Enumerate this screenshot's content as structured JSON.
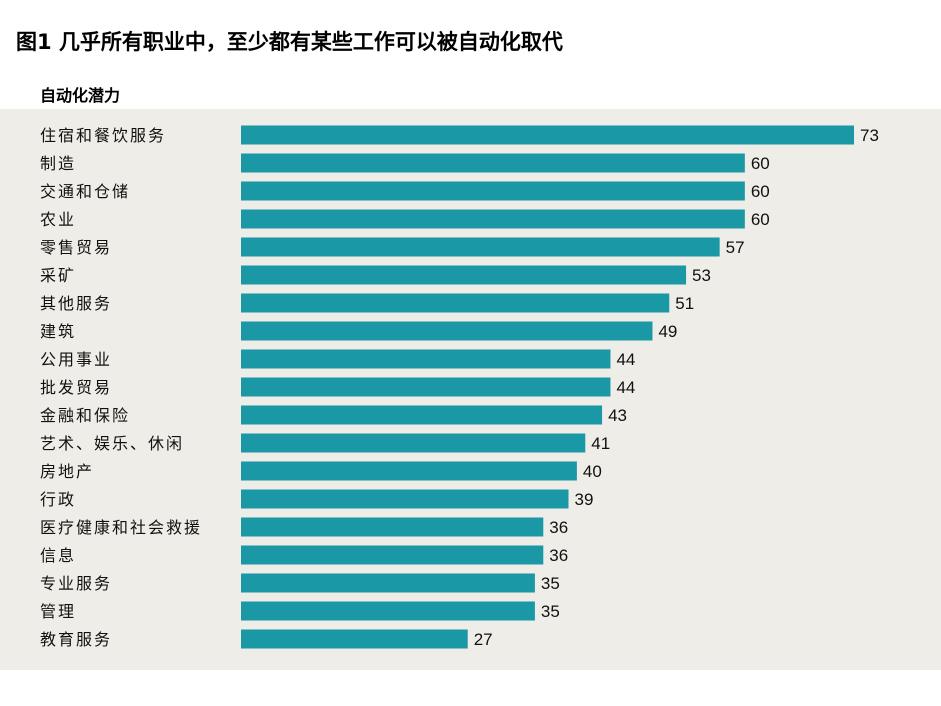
{
  "header": {
    "title": "图1 几乎所有职业中，至少都有某些工作可以被自动化取代",
    "subtitle": "自动化潜力"
  },
  "colors": {
    "bar": "#1a98a6",
    "panel_background": "#eeede7",
    "text": "#111111"
  },
  "chart_data": {
    "type": "bar",
    "orientation": "horizontal",
    "title": "",
    "xlabel": "",
    "ylabel": "",
    "xlim": [
      0,
      73
    ],
    "grid": false,
    "legend": "none",
    "categories": [
      "住宿和餐饮服务",
      "制造",
      "交通和仓储",
      "农业",
      "零售贸易",
      "采矿",
      "其他服务",
      "建筑",
      "公用事业",
      "批发贸易",
      "金融和保险",
      "艺术、娱乐、休闲",
      "房地产",
      "行政",
      "医疗健康和社会救援",
      "信息",
      "专业服务",
      "管理",
      "教育服务"
    ],
    "values": [
      73,
      60,
      60,
      60,
      57,
      53,
      51,
      49,
      44,
      44,
      43,
      41,
      40,
      39,
      36,
      36,
      35,
      35,
      27
    ],
    "value_labels": [
      "73",
      "60",
      "60",
      "60",
      "57",
      "53",
      "51",
      "49",
      "44",
      "44",
      "43",
      "41",
      "40",
      "39",
      "36",
      "36",
      "35",
      "35",
      "27"
    ]
  }
}
